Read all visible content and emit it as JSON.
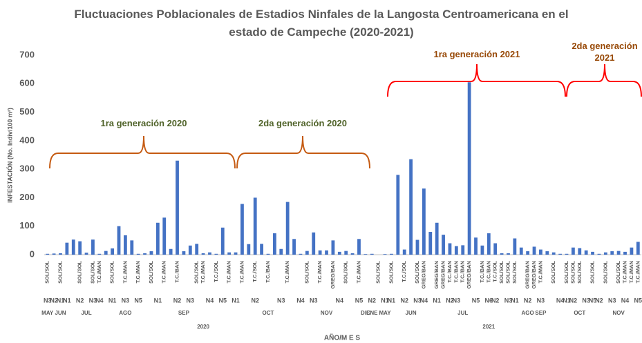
{
  "chart_data": {
    "type": "bar",
    "title": "Fluctuaciones Poblacionales de Estadios Ninfales de la Langosta Centroamericana en el estado de Campeche (2020-2021)",
    "y_label": "INFESTACIÓN (No. Indiv/100 m²)",
    "x_label": "AÑO/M E S",
    "color": "#4472c4",
    "ylim": [
      0,
      700
    ],
    "yticks": [
      0,
      100,
      200,
      300,
      400,
      500,
      600,
      700
    ],
    "grid": false,
    "values": [
      3,
      4,
      5,
      42,
      53,
      47,
      7,
      53,
      3,
      13,
      22,
      100,
      68,
      50,
      3,
      5,
      12,
      112,
      130,
      20,
      330,
      12,
      32,
      38,
      5,
      8,
      3,
      95,
      8,
      8,
      178,
      37,
      200,
      38,
      3,
      75,
      20,
      185,
      55,
      3,
      13,
      78,
      15,
      15,
      50,
      10,
      13,
      5,
      55,
      2,
      3,
      0,
      2,
      3,
      280,
      18,
      335,
      52,
      232,
      80,
      112,
      70,
      40,
      30,
      33,
      605,
      60,
      32,
      75,
      40,
      5,
      5,
      57,
      25,
      12,
      28,
      18,
      12,
      8,
      3,
      3,
      25,
      23,
      15,
      10,
      3,
      8,
      12,
      13,
      10,
      25,
      45
    ],
    "categories": [
      "SOL/SOL",
      null,
      "SOL/SOL",
      null,
      null,
      "SOL/SOL",
      null,
      "SOL/SOL",
      "T.C./MAN",
      null,
      "SOL/SOL",
      null,
      "T.C./MAN",
      null,
      "T.C./MAN",
      null,
      "SOL/SOL",
      null,
      "T.C./MAN",
      null,
      "T.C./BAN",
      null,
      null,
      "SOL/SOL",
      "T.C./MAN",
      null,
      "T.C./SOL",
      null,
      "T.C./MAN",
      null,
      "T.C./MAN",
      null,
      "T.C./SOL",
      null,
      "T.C./BAN",
      null,
      null,
      "T.C./MAN",
      null,
      null,
      "SOL/SOL",
      null,
      "T.C./MAN",
      null,
      "GREG/BAN",
      null,
      "SOL/SOL",
      null,
      "T.C./MAN",
      null,
      null,
      "SOL/SOL",
      null,
      "SOL/SOL",
      null,
      "T.C./SOL",
      null,
      "SOL/SOL",
      "GREG/BAN",
      null,
      "GREG/BAN",
      "GREG/BAN",
      "T.C./BAN",
      "T.C./BAN",
      "T.C./BAN",
      "GREG/BAN",
      null,
      "T.C./BAN",
      "T.C./BAN",
      "T.C./SOL",
      "SOL/SOL",
      "SOL/SOL",
      "SOL/SOL",
      null,
      "GREG/BAN",
      "GREG/BAN",
      "T.C./MAN",
      null,
      "SOL/SOL",
      null,
      "SOL/SOL",
      "SOL/SOL",
      "SOL/SOL",
      null,
      "SOL/SOL",
      null,
      "SOL/SOL",
      null,
      "SOL/SOL",
      "T.C./MAN",
      "T.C./MAN",
      "T.C./MAN"
    ],
    "n_labels": [
      "N3",
      "N2",
      "N1",
      "N1",
      null,
      "N2",
      null,
      "N3",
      "N4",
      null,
      "N1",
      null,
      "N3",
      null,
      "N5",
      null,
      null,
      "N1",
      null,
      null,
      "N2",
      null,
      "N3",
      null,
      null,
      "N4",
      null,
      "N5",
      null,
      "N1",
      null,
      null,
      "N2",
      null,
      null,
      null,
      "N3",
      null,
      null,
      "N4",
      null,
      "N3",
      null,
      null,
      null,
      "N4",
      null,
      null,
      "N5",
      null,
      "N2",
      null,
      "N1",
      "N1",
      null,
      "N2",
      null,
      "N3",
      "N4",
      null,
      "N1",
      null,
      "N2",
      "N3",
      null,
      null,
      "N5",
      null,
      "N6",
      "N2",
      null,
      "N3",
      "N1",
      null,
      "N2",
      null,
      "N3",
      null,
      null,
      "N4",
      "N1",
      "N2",
      null,
      "N3",
      "N5",
      "N2",
      null,
      "N3",
      null,
      "N4",
      null,
      "N5"
    ],
    "months": [
      "MAY",
      null,
      "JUN",
      null,
      null,
      null,
      "JUL",
      null,
      null,
      null,
      null,
      null,
      "AGO",
      null,
      null,
      null,
      null,
      null,
      null,
      null,
      null,
      "SEP",
      null,
      null,
      null,
      null,
      null,
      null,
      null,
      null,
      null,
      null,
      null,
      null,
      "OCT",
      null,
      null,
      null,
      null,
      null,
      null,
      null,
      null,
      "NOV",
      null,
      null,
      null,
      null,
      null,
      "DIC",
      "ENE",
      null,
      "MAY",
      null,
      null,
      null,
      "JUN",
      null,
      null,
      null,
      null,
      null,
      null,
      null,
      "JUL",
      null,
      null,
      null,
      null,
      null,
      null,
      null,
      null,
      null,
      "AGO",
      null,
      "SEP",
      null,
      null,
      null,
      null,
      null,
      "OCT",
      null,
      null,
      null,
      null,
      null,
      "NOV",
      null,
      null,
      null
    ],
    "years": [
      null,
      null,
      null,
      null,
      null,
      null,
      null,
      null,
      null,
      null,
      null,
      null,
      null,
      null,
      null,
      null,
      null,
      null,
      null,
      null,
      null,
      null,
      null,
      null,
      "2020",
      null,
      null,
      null,
      null,
      null,
      null,
      null,
      null,
      null,
      null,
      null,
      null,
      null,
      null,
      null,
      null,
      null,
      null,
      null,
      null,
      null,
      null,
      null,
      null,
      null,
      null,
      null,
      null,
      null,
      null,
      null,
      null,
      null,
      null,
      null,
      null,
      null,
      null,
      null,
      null,
      null,
      null,
      null,
      "2021",
      null,
      null,
      null,
      null,
      null,
      null,
      null,
      null,
      null,
      null,
      null,
      null,
      null,
      null,
      null,
      null,
      null,
      null,
      null,
      null,
      null,
      null,
      null
    ],
    "annotations": [
      {
        "text": "1ra generación 2020",
        "color": "#4f6228",
        "bracket_color": "#c55a11"
      },
      {
        "text": "2da generación 2020",
        "color": "#4f6228",
        "bracket_color": "#c55a11"
      },
      {
        "text": "1ra generación 2021",
        "color": "#974806",
        "bracket_color": "#ff0000"
      },
      {
        "text": "2da generación 2021",
        "color": "#974806",
        "bracket_color": "#ff0000"
      }
    ]
  }
}
